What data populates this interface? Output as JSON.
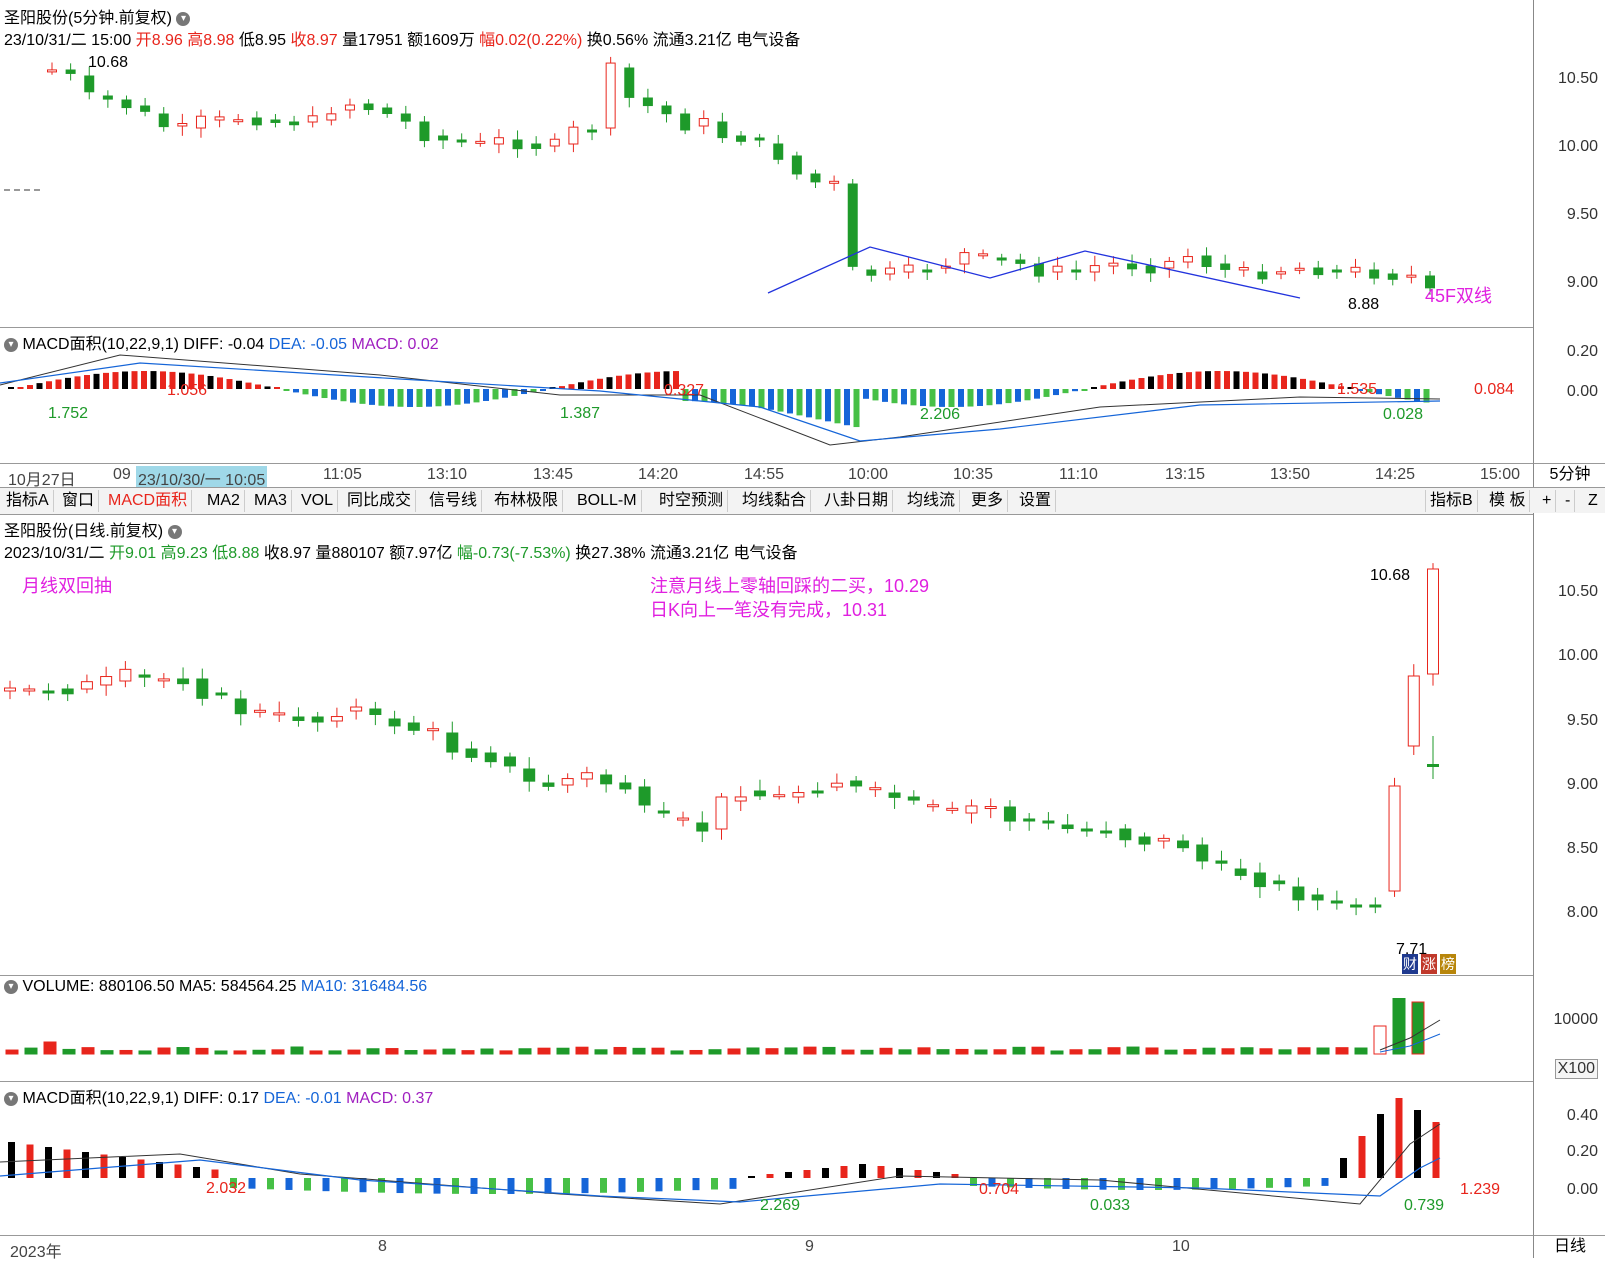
{
  "top_chart": {
    "title": "圣阳股份(5分钟.前复权)",
    "info": {
      "date": "23/10/31/二 15:00",
      "open_label": "开",
      "open": "8.96",
      "high_label": "高",
      "high": "8.98",
      "low_label": "低",
      "low": "8.95",
      "close_label": "收",
      "close": "8.97",
      "vol_label": "量",
      "vol": "17951",
      "amt_label": "额",
      "amt": "1609万",
      "chg_label": "幅",
      "chg": "0.02(0.22%)",
      "turnover": "换0.56%",
      "float": "流通3.21亿",
      "sector": "电气设备"
    },
    "price_axis": [
      "10.50",
      "10.00",
      "9.50",
      "9.00"
    ],
    "annotations": {
      "peak": "10.68",
      "low": "8.88",
      "dualline": "45F双线"
    },
    "macd_header": {
      "name": "MACD面积(10,22,9,1)",
      "diff": "DIFF: -0.04",
      "dea": "DEA: -0.05",
      "macd": "MACD: 0.02"
    },
    "macd_axis": [
      "0.20",
      "0.00"
    ],
    "macd_labels": [
      "1.752",
      "1.056",
      "1.387",
      "0.327",
      "2.206",
      "1.535",
      "0.028",
      "0.084"
    ],
    "time_axis": [
      "10月27日",
      "09",
      "11:05",
      "13:10",
      "13:45",
      "14:20",
      "14:55",
      "10:00",
      "10:35",
      "11:10",
      "13:15",
      "13:50",
      "14:25",
      "15:00"
    ],
    "time_highlight": "23/10/30/一 10:05",
    "period": "5分钟"
  },
  "toolbar": {
    "left": [
      "指标A",
      "窗口",
      "MACD面积",
      "MA2",
      "MA3",
      "VOL",
      "同比成交",
      "信号线",
      "布林极限",
      "BOLL-M",
      "时空预测",
      "均线黏合",
      "八卦日期",
      "均线流",
      "更多",
      "设置"
    ],
    "right": [
      "指标B",
      "模 板",
      "+",
      "-",
      "Z"
    ]
  },
  "bottom_chart": {
    "title": "圣阳股份(日线.前复权)",
    "info": {
      "date": "2023/10/31/二",
      "open_label": "开",
      "open": "9.01",
      "high_label": "高",
      "high": "9.23",
      "low_label": "低",
      "low": "8.88",
      "close_label": "收",
      "close": "8.97",
      "vol_label": "量",
      "vol": "880107",
      "amt_label": "额",
      "amt": "7.97亿",
      "chg_label": "幅",
      "chg": "-0.73(-7.53%)",
      "turnover": "换27.38%",
      "float": "流通3.21亿",
      "sector": "电气设备"
    },
    "price_axis": [
      "10.50",
      "10.00",
      "9.50",
      "9.00",
      "8.50",
      "8.00"
    ],
    "annotations": {
      "monthly": "月线双回抽",
      "note1": "注意月线上零轴回踩的二买，10.29",
      "note2": "日K向上一笔没有完成，10.31",
      "peak": "10.68",
      "low": "7.71",
      "badge1": "财",
      "badge2": "涨",
      "badge3": "榜"
    },
    "volume_header": {
      "name": "VOLUME: 880106.50",
      "ma5": "MA5: 584564.25",
      "ma10": "MA10: 316484.56"
    },
    "volume_axis": [
      "10000"
    ],
    "volume_unit": "X100",
    "macd_header": {
      "name": "MACD面积(10,22,9,1)",
      "diff": "DIFF: 0.17",
      "dea": "DEA: -0.01",
      "macd": "MACD: 0.37"
    },
    "macd_axis": [
      "0.40",
      "0.20",
      "0.00"
    ],
    "macd_labels": [
      "2.032",
      "2.269",
      "0.704",
      "0.033",
      "0.739",
      "1.239"
    ],
    "time_axis": [
      "2023年",
      "8",
      "9",
      "10"
    ],
    "period": "日线"
  },
  "colors": {
    "up": "#e8251c",
    "down": "#1e9a2a",
    "blue": "#1565d8",
    "annotation": "#e020e0"
  }
}
